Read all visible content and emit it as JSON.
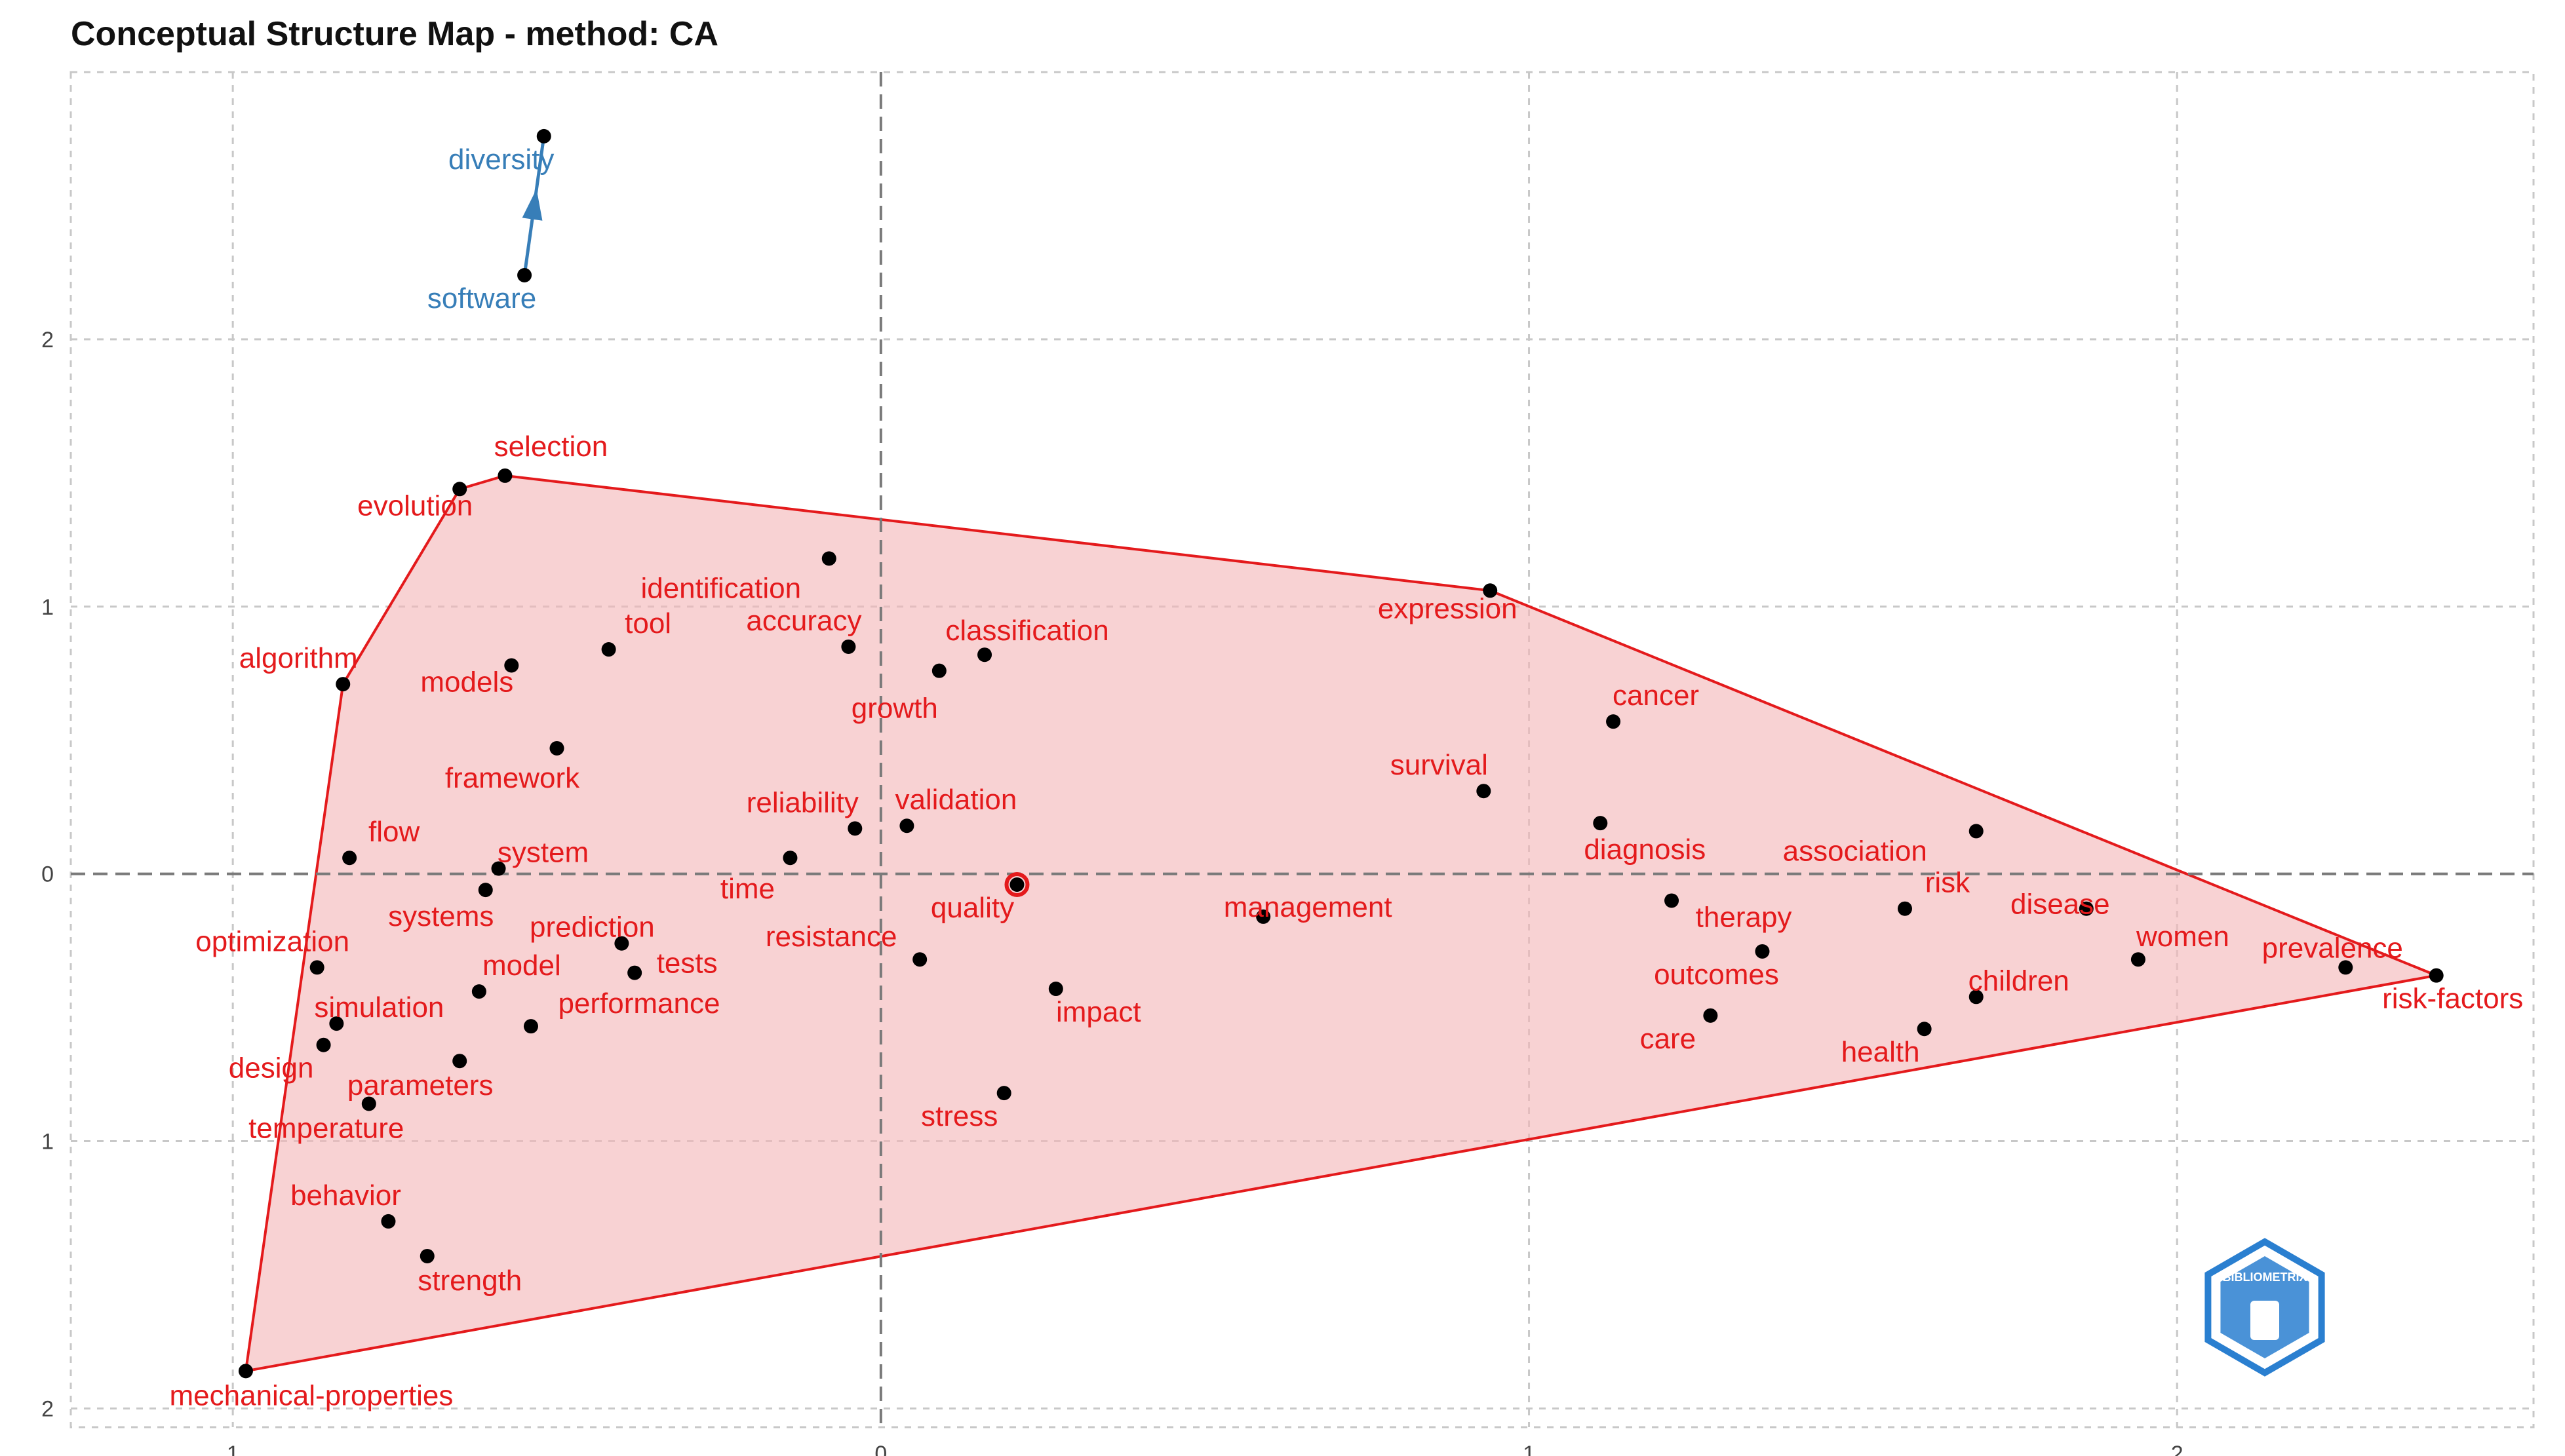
{
  "title": "Conceptual Structure Map - method: CA",
  "colors": {
    "cluster1": "#e41a1c",
    "cluster1_fill": "#f4b6b8",
    "cluster2": "#377eb8",
    "point": "#000000",
    "grid": "#c8c8c8",
    "zero_line": "#7a7a7a",
    "logo": "#2a7fd0"
  },
  "logo": {
    "name": "bibliometrix-logo",
    "text": "BIBLIOMETRIX"
  },
  "chart_data": {
    "type": "scatter",
    "title": "Conceptual Structure Map - method: CA",
    "xlabel": "",
    "ylabel": "",
    "xlim": [
      -1.25,
      2.55
    ],
    "ylim": [
      -2.07,
      3.0
    ],
    "grid": true,
    "x_ticks": [
      -1,
      0,
      1,
      2
    ],
    "x_tick_labels": [
      "1",
      "0",
      "1",
      "2"
    ],
    "y_ticks": [
      2,
      1,
      0,
      -1,
      -2
    ],
    "y_tick_labels": [
      "2",
      "1",
      "0",
      "1",
      "2"
    ],
    "reference_lines": {
      "x": 0,
      "y": 0
    },
    "centroid": {
      "x": 0.21,
      "y": -0.04
    },
    "clusters": [
      {
        "id": 1,
        "color": "#e41a1c",
        "hull": [
          "mechanical-properties",
          "algorithm",
          "evolution",
          "selection",
          "expression",
          "risk-factors"
        ],
        "points": [
          {
            "label": "selection",
            "x": -0.58,
            "y": 1.49
          },
          {
            "label": "evolution",
            "x": -0.65,
            "y": 1.44
          },
          {
            "label": "identification",
            "x": -0.08,
            "y": 1.18
          },
          {
            "label": "expression",
            "x": 0.94,
            "y": 1.06
          },
          {
            "label": "tool",
            "x": -0.42,
            "y": 0.84
          },
          {
            "label": "accuracy",
            "x": -0.05,
            "y": 0.85
          },
          {
            "label": "classification",
            "x": 0.16,
            "y": 0.82
          },
          {
            "label": "algorithm",
            "x": -0.83,
            "y": 0.71
          },
          {
            "label": "models",
            "x": -0.57,
            "y": 0.78
          },
          {
            "label": "growth",
            "x": 0.09,
            "y": 0.76
          },
          {
            "label": "cancer",
            "x": 1.13,
            "y": 0.57
          },
          {
            "label": "framework",
            "x": -0.5,
            "y": 0.47
          },
          {
            "label": "survival",
            "x": 0.93,
            "y": 0.31
          },
          {
            "label": "reliability",
            "x": -0.04,
            "y": 0.17
          },
          {
            "label": "validation",
            "x": 0.04,
            "y": 0.18
          },
          {
            "label": "diagnosis",
            "x": 1.11,
            "y": 0.19
          },
          {
            "label": "association",
            "x": 1.69,
            "y": 0.16
          },
          {
            "label": "flow",
            "x": -0.82,
            "y": 0.06
          },
          {
            "label": "system",
            "x": -0.59,
            "y": 0.02
          },
          {
            "label": "time",
            "x": -0.14,
            "y": 0.06
          },
          {
            "label": "systems",
            "x": -0.61,
            "y": -0.06
          },
          {
            "label": "quality",
            "x": 0.21,
            "y": -0.04
          },
          {
            "label": "management",
            "x": 0.59,
            "y": -0.16
          },
          {
            "label": "therapy",
            "x": 1.22,
            "y": -0.1
          },
          {
            "label": "risk",
            "x": 1.58,
            "y": -0.13
          },
          {
            "label": "disease",
            "x": 1.86,
            "y": -0.13
          },
          {
            "label": "women",
            "x": 1.94,
            "y": -0.32
          },
          {
            "label": "prevalence",
            "x": 2.26,
            "y": -0.35
          },
          {
            "label": "risk-factors",
            "x": 2.4,
            "y": -0.38
          },
          {
            "label": "optimization",
            "x": -0.87,
            "y": -0.35
          },
          {
            "label": "prediction",
            "x": -0.4,
            "y": -0.26
          },
          {
            "label": "tests",
            "x": -0.38,
            "y": -0.37
          },
          {
            "label": "resistance",
            "x": 0.06,
            "y": -0.32
          },
          {
            "label": "outcomes",
            "x": 1.36,
            "y": -0.29
          },
          {
            "label": "children",
            "x": 1.69,
            "y": -0.46
          },
          {
            "label": "model",
            "x": -0.62,
            "y": -0.44
          },
          {
            "label": "impact",
            "x": 0.27,
            "y": -0.43
          },
          {
            "label": "simulation",
            "x": -0.84,
            "y": -0.56
          },
          {
            "label": "performance",
            "x": -0.54,
            "y": -0.57
          },
          {
            "label": "care",
            "x": 1.28,
            "y": -0.53
          },
          {
            "label": "health",
            "x": 1.61,
            "y": -0.58
          },
          {
            "label": "design",
            "x": -0.86,
            "y": -0.64
          },
          {
            "label": "parameters",
            "x": -0.65,
            "y": -0.7
          },
          {
            "label": "stress",
            "x": 0.19,
            "y": -0.82
          },
          {
            "label": "temperature",
            "x": -0.79,
            "y": -0.86
          },
          {
            "label": "behavior",
            "x": -0.76,
            "y": -1.3
          },
          {
            "label": "strength",
            "x": -0.7,
            "y": -1.43
          },
          {
            "label": "mechanical-properties",
            "x": -0.98,
            "y": -1.86
          }
        ]
      },
      {
        "id": 2,
        "color": "#377eb8",
        "points": [
          {
            "label": "diversity",
            "x": -0.52,
            "y": 2.76
          },
          {
            "label": "software",
            "x": -0.55,
            "y": 2.24
          }
        ]
      }
    ]
  }
}
